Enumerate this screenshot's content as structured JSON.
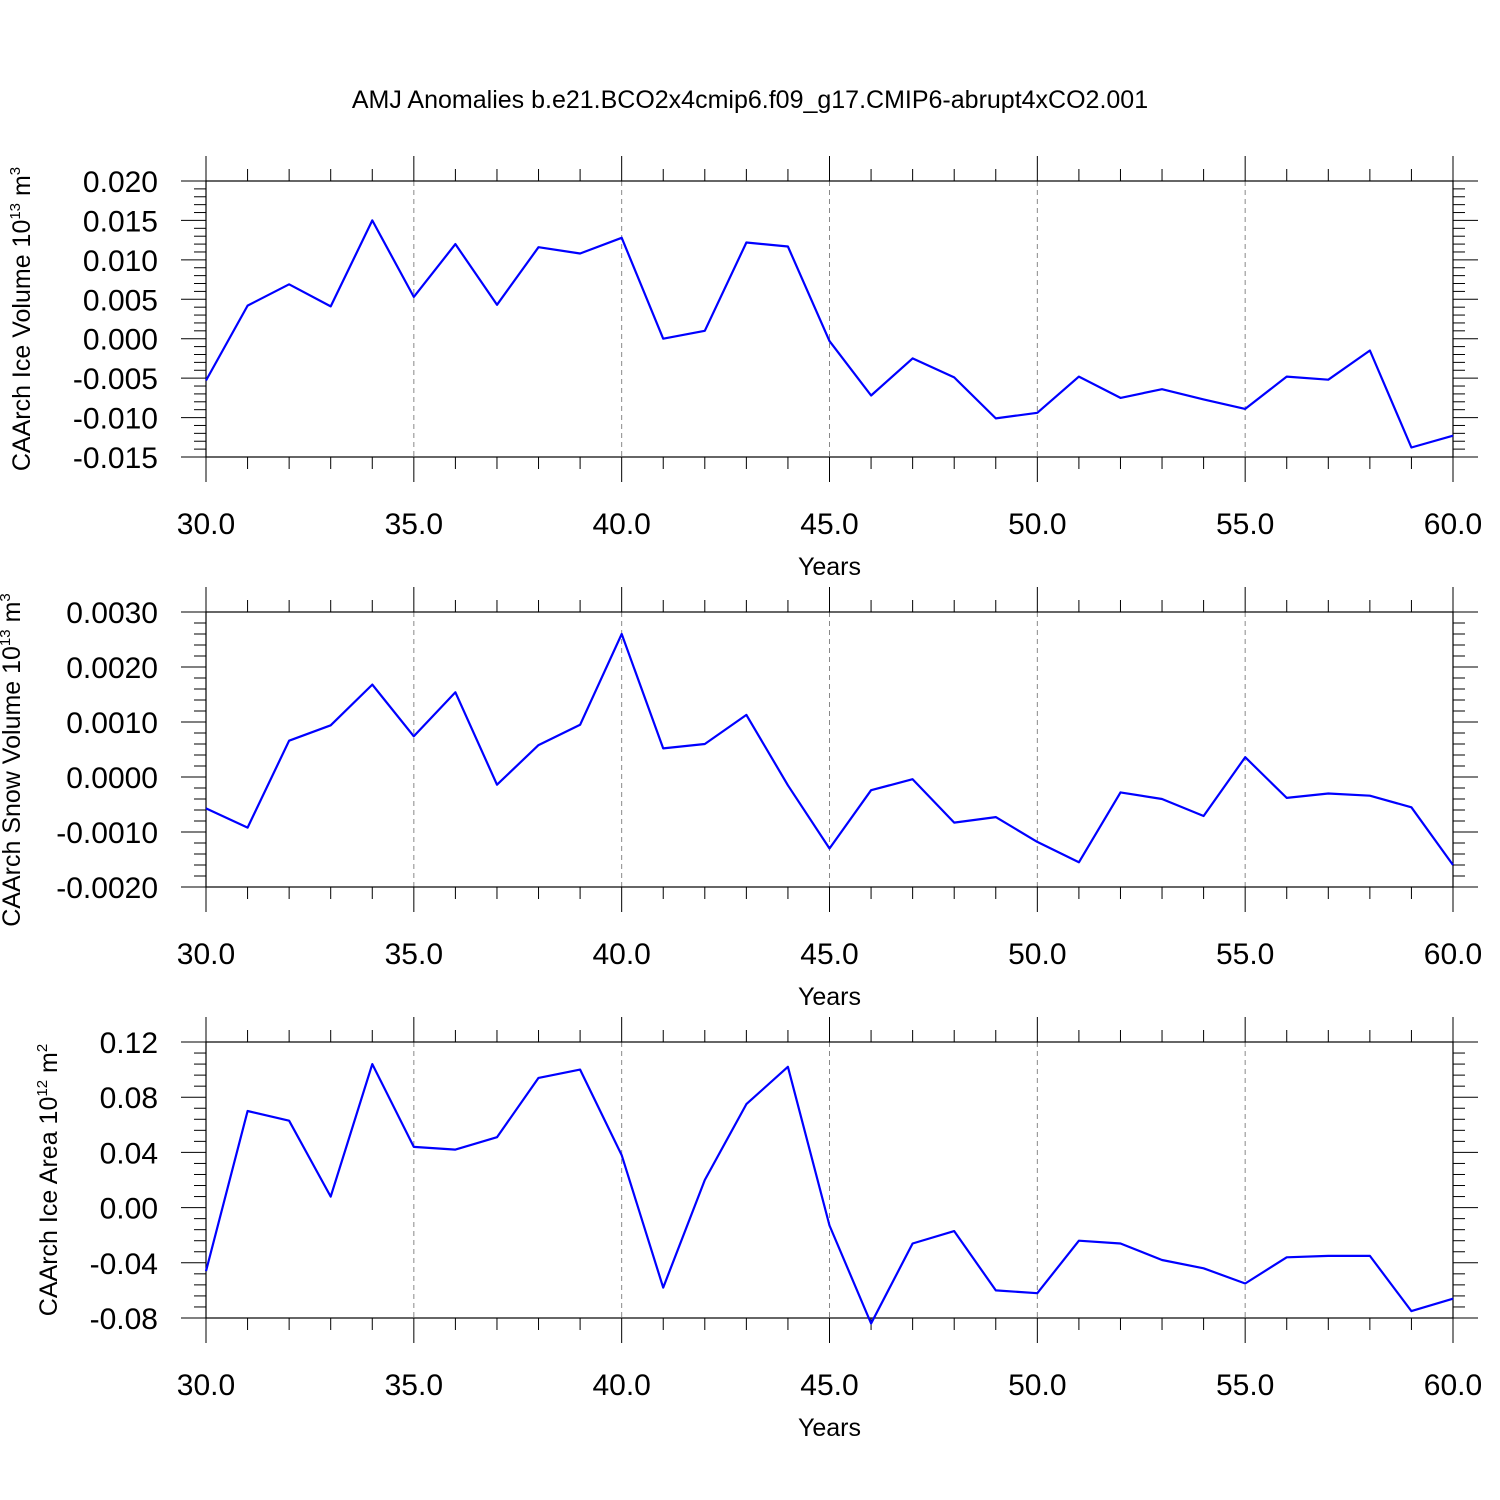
{
  "title": "AMJ Anomalies b.e21.BCO2x4cmip6.f09_g17.CMIP6-abrupt4xCO2.001",
  "line_color": "#0000ff",
  "chart_data": [
    {
      "type": "line",
      "xlabel": "Years",
      "ylabel": "CAArch Ice Volume 10",
      "ylabel_exp": "13",
      "ylabel_unit": " m",
      "ylabel_unit_exp": "3",
      "xlim": [
        30,
        60
      ],
      "ylim": [
        -0.015,
        0.02
      ],
      "x_ticks": [
        30,
        35,
        40,
        45,
        50,
        55,
        60
      ],
      "x_tick_labels": [
        "30.0",
        "35.0",
        "40.0",
        "45.0",
        "50.0",
        "55.0",
        "60.0"
      ],
      "y_ticks": [
        -0.015,
        -0.01,
        -0.005,
        0.0,
        0.005,
        0.01,
        0.015,
        0.02
      ],
      "y_tick_labels": [
        "-0.015",
        "-0.010",
        "-0.005",
        "0.000",
        "0.005",
        "0.010",
        "0.015",
        "0.020"
      ],
      "grid": "dashed vertical at major x ticks",
      "x": [
        30,
        31,
        32,
        33,
        34,
        35,
        36,
        37,
        38,
        39,
        40,
        41,
        42,
        43,
        44,
        45,
        46,
        47,
        48,
        49,
        50,
        51,
        52,
        53,
        54,
        55,
        56,
        57,
        58,
        59,
        60
      ],
      "series": [
        {
          "values": [
            -0.0053,
            0.0042,
            0.0069,
            0.0041,
            0.015,
            0.0053,
            0.012,
            0.0043,
            0.0116,
            0.0108,
            0.0128,
            0.0,
            0.001,
            0.0122,
            0.0117,
            -0.0003,
            -0.0072,
            -0.0025,
            -0.0049,
            -0.0101,
            -0.0094,
            -0.0048,
            -0.0075,
            -0.0064,
            -0.0077,
            -0.0089,
            -0.0048,
            -0.0052,
            -0.0015,
            -0.0138,
            -0.0123
          ]
        }
      ]
    },
    {
      "type": "line",
      "xlabel": "Years",
      "ylabel": "CAArch Snow Volume 10",
      "ylabel_exp": "13",
      "ylabel_unit": " m",
      "ylabel_unit_exp": "3",
      "xlim": [
        30,
        60
      ],
      "ylim": [
        -0.002,
        0.003
      ],
      "x_ticks": [
        30,
        35,
        40,
        45,
        50,
        55,
        60
      ],
      "x_tick_labels": [
        "30.0",
        "35.0",
        "40.0",
        "45.0",
        "50.0",
        "55.0",
        "60.0"
      ],
      "y_ticks": [
        -0.002,
        -0.001,
        0.0,
        0.001,
        0.002,
        0.003
      ],
      "y_tick_labels": [
        "-0.0020",
        "-0.0010",
        "0.0000",
        "0.0010",
        "0.0020",
        "0.0030"
      ],
      "grid": "dashed vertical at major x ticks",
      "x": [
        30,
        31,
        32,
        33,
        34,
        35,
        36,
        37,
        38,
        39,
        40,
        41,
        42,
        43,
        44,
        45,
        46,
        47,
        48,
        49,
        50,
        51,
        52,
        53,
        54,
        55,
        56,
        57,
        58,
        59,
        60
      ],
      "series": [
        {
          "values": [
            -0.00057,
            -0.00092,
            0.00066,
            0.00094,
            0.00168,
            0.00074,
            0.00154,
            -0.00014,
            0.00058,
            0.00095,
            0.0026,
            0.00052,
            0.0006,
            0.00113,
            -0.00015,
            -0.0013,
            -0.00024,
            -4e-05,
            -0.00083,
            -0.00073,
            -0.00118,
            -0.00155,
            -0.00028,
            -0.0004,
            -0.00071,
            0.00036,
            -0.00038,
            -0.0003,
            -0.00034,
            -0.00055,
            -0.0016
          ]
        }
      ]
    },
    {
      "type": "line",
      "xlabel": "Years",
      "ylabel": "CAArch Ice Area 10",
      "ylabel_exp": "12",
      "ylabel_unit": " m",
      "ylabel_unit_exp": "2",
      "xlim": [
        30,
        60
      ],
      "ylim": [
        -0.09,
        0.12
      ],
      "x_ticks": [
        30,
        35,
        40,
        45,
        50,
        55,
        60
      ],
      "x_tick_labels": [
        "30.0",
        "35.0",
        "40.0",
        "45.0",
        "50.0",
        "55.0",
        "60.0"
      ],
      "y_ticks": [
        -0.08,
        -0.04,
        0.0,
        0.04,
        0.08,
        0.12
      ],
      "y_tick_labels": [
        "-0.08",
        "-0.04",
        "0.00",
        "0.04",
        "0.08",
        "0.12"
      ],
      "grid": "dashed vertical at major x ticks",
      "x": [
        30,
        31,
        32,
        33,
        34,
        35,
        36,
        37,
        38,
        39,
        40,
        41,
        42,
        43,
        44,
        45,
        46,
        47,
        48,
        49,
        50,
        51,
        52,
        53,
        54,
        55,
        56,
        57,
        58,
        59,
        60
      ],
      "series": [
        {
          "values": [
            -0.046,
            0.07,
            0.063,
            0.008,
            0.104,
            0.044,
            0.042,
            0.051,
            0.094,
            0.1,
            0.038,
            -0.058,
            0.02,
            0.075,
            0.102,
            -0.013,
            -0.084,
            -0.026,
            -0.017,
            -0.06,
            -0.062,
            -0.024,
            -0.026,
            -0.038,
            -0.044,
            -0.055,
            -0.036,
            -0.035,
            -0.035,
            -0.075,
            -0.066
          ]
        }
      ]
    }
  ]
}
